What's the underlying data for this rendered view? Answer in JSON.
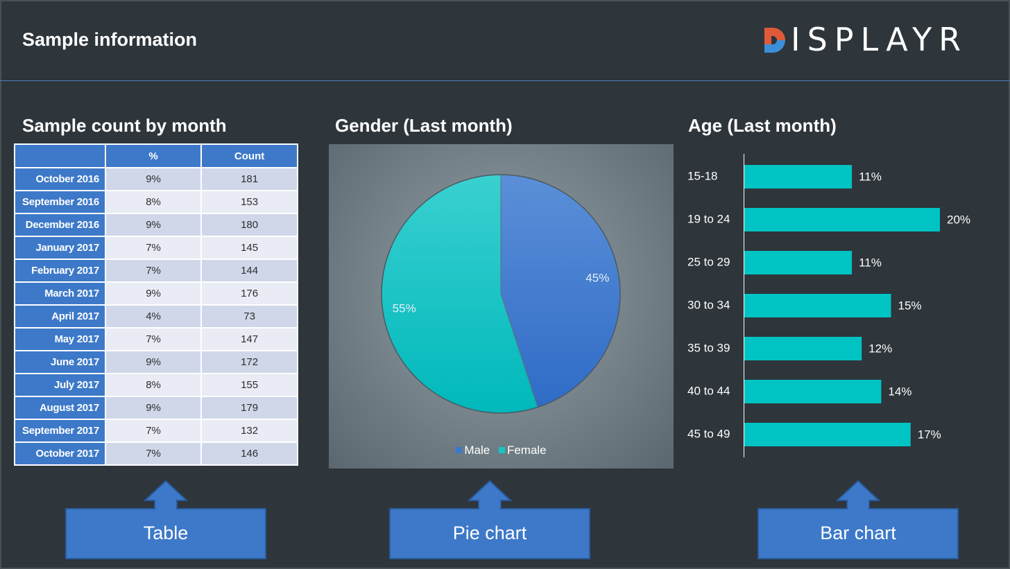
{
  "header": {
    "title": "Sample information",
    "logo_text": "ISPLAYR",
    "logo_full": "DISPLAYR"
  },
  "sections": {
    "table_title": "Sample count by month",
    "pie_title": "Gender (Last month)",
    "bar_title": "Age (Last month)"
  },
  "table": {
    "columns": [
      "",
      "%",
      "Count"
    ],
    "rows": [
      {
        "label": "October 2016",
        "pct": "9%",
        "count": "181"
      },
      {
        "label": "September 2016",
        "pct": "8%",
        "count": "153"
      },
      {
        "label": "December 2016",
        "pct": "9%",
        "count": "180"
      },
      {
        "label": "January 2017",
        "pct": "7%",
        "count": "145"
      },
      {
        "label": "February 2017",
        "pct": "7%",
        "count": "144"
      },
      {
        "label": "March 2017",
        "pct": "9%",
        "count": "176"
      },
      {
        "label": "April 2017",
        "pct": "4%",
        "count": "73"
      },
      {
        "label": "May 2017",
        "pct": "7%",
        "count": "147"
      },
      {
        "label": "June 2017",
        "pct": "9%",
        "count": "172"
      },
      {
        "label": "July 2017",
        "pct": "8%",
        "count": "155"
      },
      {
        "label": "August 2017",
        "pct": "9%",
        "count": "179"
      },
      {
        "label": "September 2017",
        "pct": "7%",
        "count": "132"
      },
      {
        "label": "October 2017",
        "pct": "7%",
        "count": "146"
      }
    ]
  },
  "chart_data": [
    {
      "type": "table",
      "title": "Sample count by month",
      "columns": [
        "",
        "%",
        "Count"
      ],
      "categories": [
        "October 2016",
        "September 2016",
        "December 2016",
        "January 2017",
        "February 2017",
        "March 2017",
        "April 2017",
        "May 2017",
        "June 2017",
        "July 2017",
        "August 2017",
        "September 2017",
        "October 2017"
      ],
      "series": [
        {
          "name": "%",
          "values": [
            9,
            8,
            9,
            7,
            7,
            9,
            4,
            7,
            9,
            8,
            9,
            7,
            7
          ]
        },
        {
          "name": "Count",
          "values": [
            181,
            153,
            180,
            145,
            144,
            176,
            73,
            147,
            172,
            155,
            179,
            132,
            146
          ]
        }
      ]
    },
    {
      "type": "pie",
      "title": "Gender (Last month)",
      "categories": [
        "Male",
        "Female"
      ],
      "values": [
        45,
        55
      ],
      "labels": [
        "45%",
        "55%"
      ],
      "colors": [
        "#3b78cf",
        "#13c6c6"
      ],
      "legend": "bottom"
    },
    {
      "type": "bar",
      "orientation": "horizontal",
      "title": "Age (Last month)",
      "categories": [
        "15-18",
        "19 to 24",
        "25 to 29",
        "30 to 34",
        "35 to 39",
        "40 to 44",
        "45 to 49"
      ],
      "values": [
        11,
        20,
        11,
        15,
        12,
        14,
        17
      ],
      "labels": [
        "11%",
        "20%",
        "11%",
        "15%",
        "12%",
        "14%",
        "17%"
      ],
      "color": "#00c4c4",
      "xlim": [
        0,
        20
      ]
    }
  ],
  "callouts": [
    "Table",
    "Pie chart",
    "Bar chart"
  ],
  "colors": {
    "background": "#2e353b",
    "accent_blue": "#3d79c8",
    "teal": "#00c4c4"
  }
}
